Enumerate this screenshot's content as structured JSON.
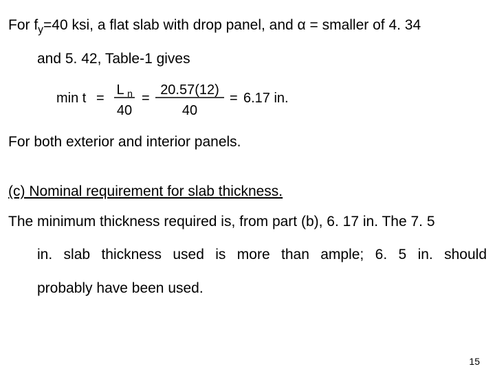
{
  "p1a": "For f",
  "p1_sub": "y",
  "p1b": "=40 ksi, a flat slab with drop panel, and α = smaller of 4. 34",
  "p1c": "and 5. 42, Table-1 gives",
  "eq": {
    "prefix": "min t",
    "eq1": "=",
    "num1_a": "L",
    "num1_b": "n",
    "den1": "40",
    "eq2": "=",
    "num2": "20.57(12)",
    "den2": "40",
    "eq3": "=",
    "result": "6.17 in.",
    "text_color": "#000000",
    "line_color": "#000000",
    "sans_family": "Arial, Helvetica, sans-serif",
    "fontsize": 20,
    "sub_fontsize": 14
  },
  "p2": "For both exterior and interior panels.",
  "heading": "(c)   Nominal requirement for slab thickness.",
  "p3a": "The minimum thickness required is, from part (b), 6. 17 in. The 7. 5",
  "p3b": "in. slab thickness used is more than ample; 6. 5 in. should",
  "p3c": "probably have been used.",
  "page_num": "15"
}
